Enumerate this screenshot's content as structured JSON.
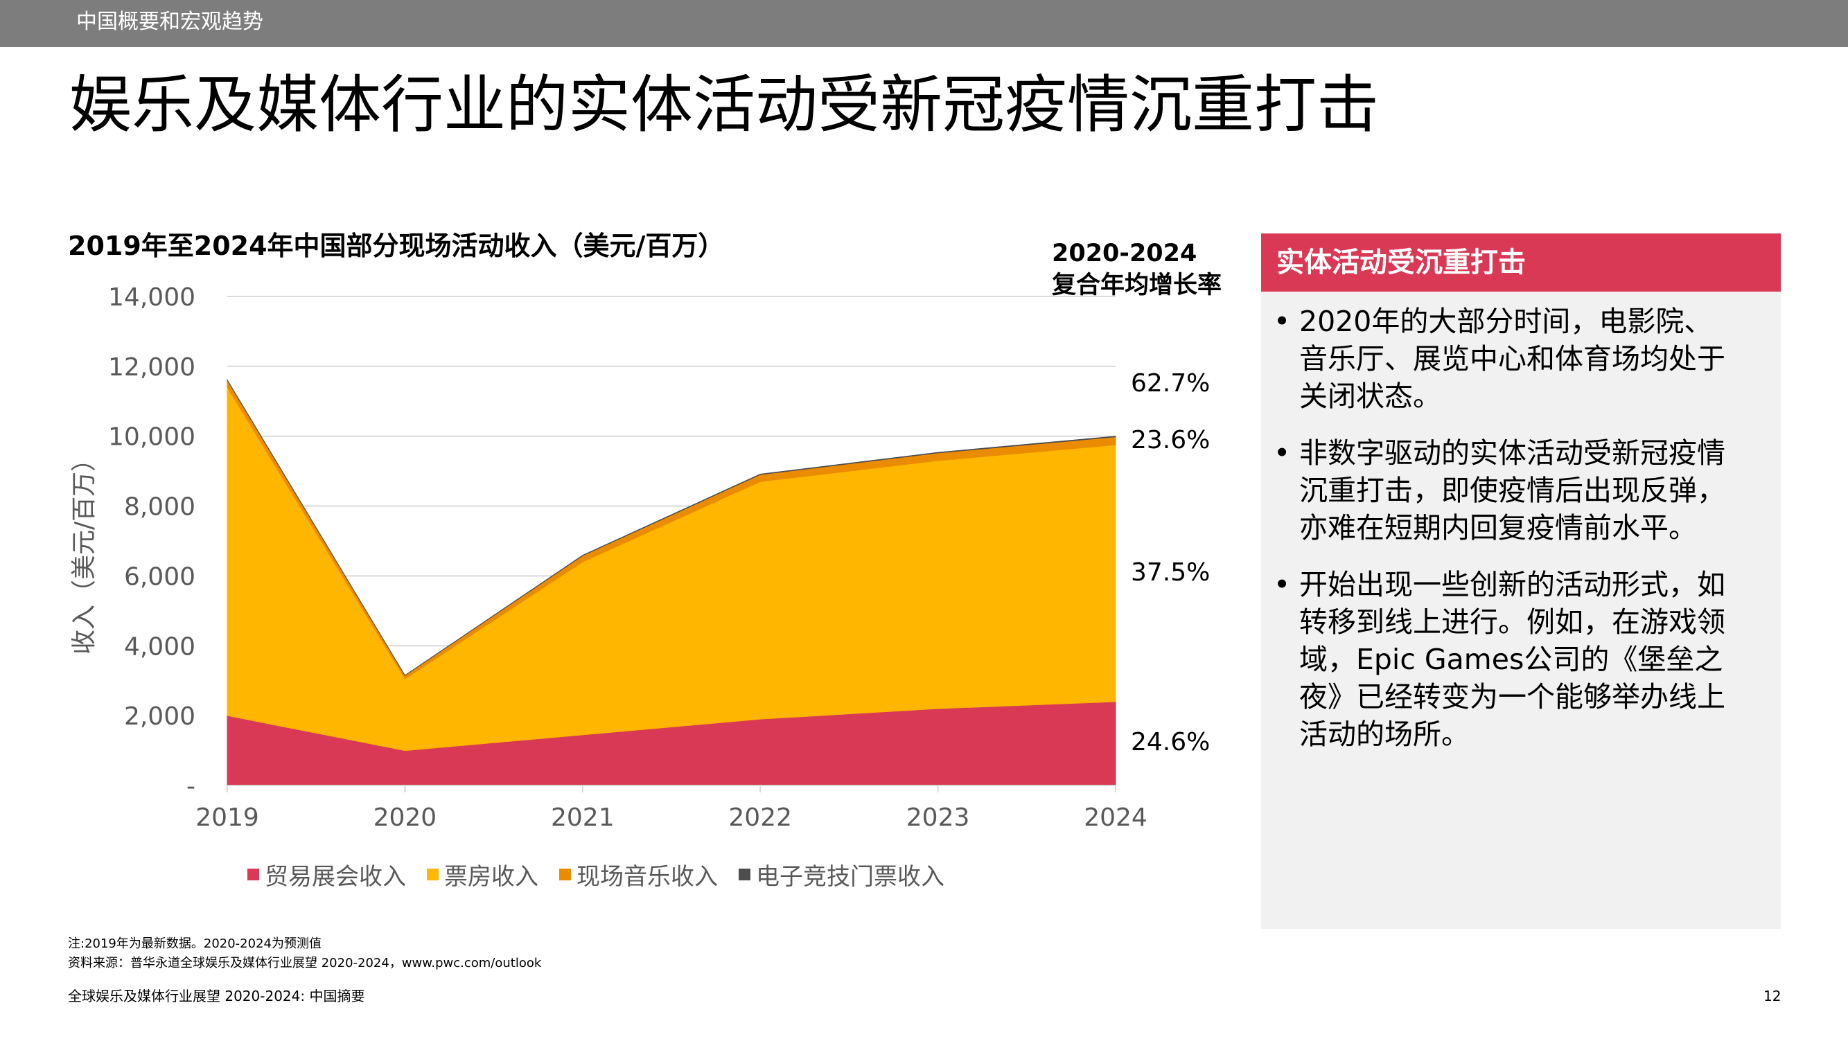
{
  "header": {
    "section": "中国概要和宏观趋势"
  },
  "page_title": "娱乐及媒体行业的实体活动受新冠疫情沉重打击",
  "chart_data": {
    "type": "area",
    "stacked": true,
    "title": "2019年至2024年中国部分现场活动收入（美元/百万）",
    "ylabel": "收入（美元/百万）",
    "xlabel": "",
    "categories": [
      "2019",
      "2020",
      "2021",
      "2022",
      "2023",
      "2024"
    ],
    "ylim": [
      0,
      14000
    ],
    "yticks": [
      {
        "value": 0,
        "label": "-"
      },
      {
        "value": 2000,
        "label": "2,000"
      },
      {
        "value": 4000,
        "label": "4,000"
      },
      {
        "value": 6000,
        "label": "6,000"
      },
      {
        "value": 8000,
        "label": "8,000"
      },
      {
        "value": 10000,
        "label": "10,000"
      },
      {
        "value": 12000,
        "label": "12,000"
      },
      {
        "value": 14000,
        "label": "14,000"
      }
    ],
    "grid": true,
    "legend_position": "bottom",
    "series": [
      {
        "name": "贸易展会收入",
        "color": "#d93954",
        "values": [
          2000,
          1000,
          1450,
          1900,
          2200,
          2400
        ]
      },
      {
        "name": "票房收入",
        "color": "#ffb600",
        "values": [
          9400,
          2050,
          4950,
          6800,
          7100,
          7350
        ]
      },
      {
        "name": "现场音乐收入",
        "color": "#eb8c00",
        "values": [
          200,
          100,
          180,
          200,
          220,
          230
        ]
      },
      {
        "name": "电子竞技门票收入",
        "color": "#4d4d4d",
        "values": [
          10,
          3,
          10,
          14,
          16,
          18
        ]
      }
    ],
    "cagr_heading": [
      "2020-2024",
      "复合年均增长率"
    ],
    "cagr": [
      {
        "series": "贸易展会收入",
        "label": "24.6%"
      },
      {
        "series": "票房收入",
        "label": "37.5%"
      },
      {
        "series": "现场音乐收入",
        "label": "23.6%"
      },
      {
        "series": "电子竞技门票收入",
        "label": "62.7%"
      }
    ]
  },
  "panel": {
    "header": "实体活动受沉重打击",
    "bullets": [
      "2020年的大部分时间，电影院、音乐厅、展览中心和体育场均处于关闭状态。",
      "非数字驱动的实体活动受新冠疫情沉重打击，即使疫情后出现反弹，亦难在短期内回复疫情前水平。",
      "开始出现一些创新的活动形式，如转移到线上进行。例如，在游戏领域，Epic Games公司的《堡垒之夜》已经转变为一个能够举办线上活动的场所。"
    ]
  },
  "notes": {
    "note": "注:2019年为最新数据。2020-2024为预测值",
    "source": "资料来源：普华永道全球娱乐及媒体行业展望 2020-2024，www.pwc.com/outlook"
  },
  "footer": {
    "publication": "全球娱乐及媒体行业展望 2020-2024: 中国摘要",
    "page_number": "12"
  }
}
